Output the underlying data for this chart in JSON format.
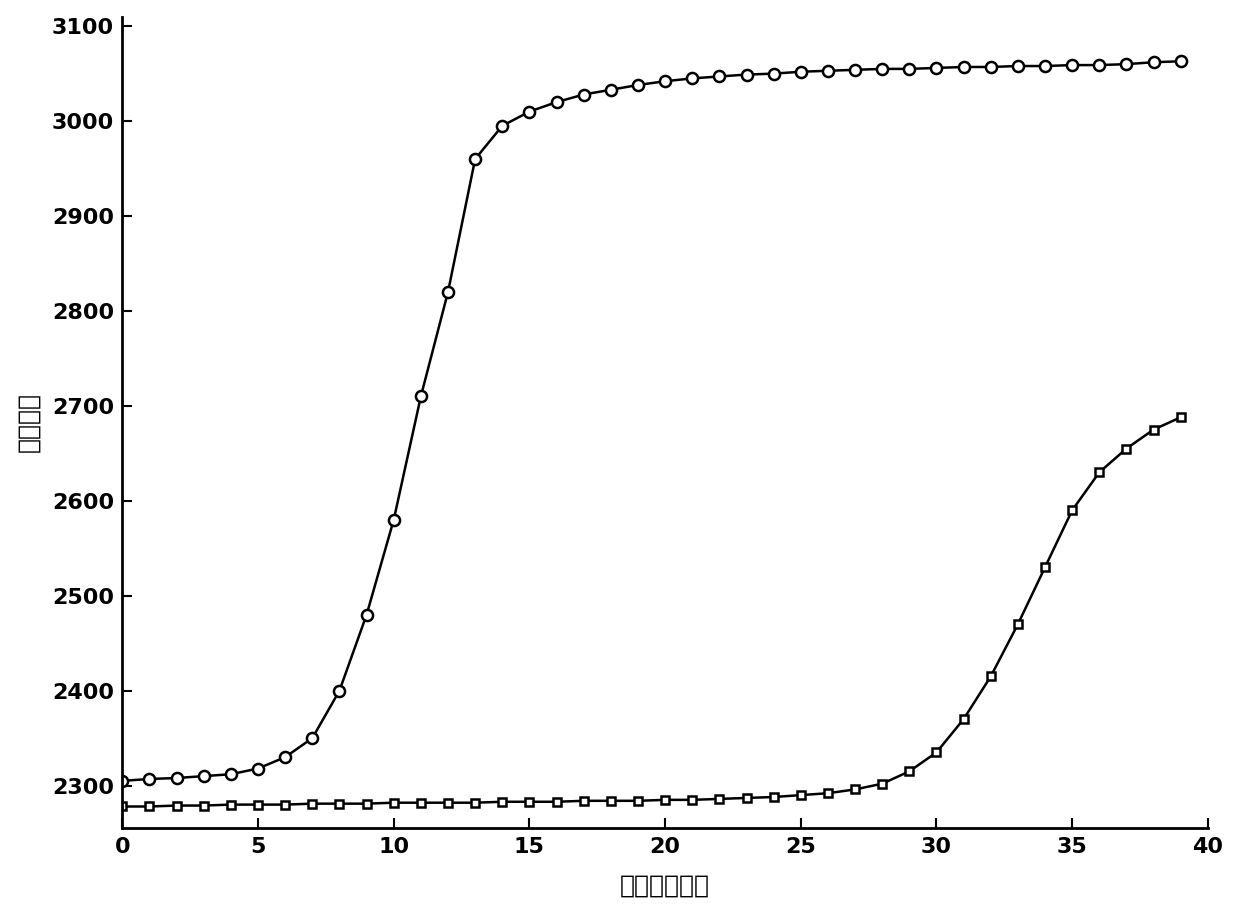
{
  "title": "",
  "xlabel": "时间（分钟）",
  "ylabel": "荧光强度",
  "xlim": [
    0,
    40
  ],
  "ylim": [
    2255,
    3110
  ],
  "yticks": [
    2300,
    2400,
    2500,
    2600,
    2700,
    2800,
    2900,
    3000,
    3100
  ],
  "xticks": [
    0,
    5,
    10,
    15,
    20,
    25,
    30,
    35,
    40
  ],
  "background_color": "#ffffff",
  "line_color": "#000000",
  "circle_series": {
    "x": [
      0,
      1,
      2,
      3,
      4,
      5,
      6,
      7,
      8,
      9,
      10,
      11,
      12,
      13,
      14,
      15,
      16,
      17,
      18,
      19,
      20,
      21,
      22,
      23,
      24,
      25,
      26,
      27,
      28,
      29,
      30,
      31,
      32,
      33,
      34,
      35,
      36,
      37,
      38,
      39
    ],
    "y": [
      2305,
      2307,
      2308,
      2310,
      2312,
      2318,
      2330,
      2350,
      2400,
      2480,
      2580,
      2710,
      2820,
      2960,
      2995,
      3010,
      3020,
      3028,
      3033,
      3038,
      3042,
      3045,
      3047,
      3049,
      3050,
      3052,
      3053,
      3054,
      3055,
      3055,
      3056,
      3057,
      3057,
      3058,
      3058,
      3059,
      3059,
      3060,
      3062,
      3063
    ]
  },
  "diamond_series": {
    "x": [
      0,
      1,
      2,
      3,
      4,
      5,
      6,
      7,
      8,
      9,
      10,
      11,
      12,
      13,
      14,
      15,
      16,
      17,
      18,
      19,
      20,
      21,
      22,
      23,
      24,
      25,
      26,
      27,
      28,
      29,
      30,
      31,
      32,
      33,
      34,
      35,
      36,
      37,
      38,
      39
    ],
    "y": [
      2278,
      2278,
      2279,
      2279,
      2280,
      2280,
      2280,
      2281,
      2281,
      2281,
      2282,
      2282,
      2282,
      2282,
      2283,
      2283,
      2283,
      2284,
      2284,
      2284,
      2285,
      2285,
      2286,
      2287,
      2288,
      2290,
      2292,
      2296,
      2302,
      2315,
      2335,
      2370,
      2415,
      2470,
      2530,
      2590,
      2630,
      2655,
      2675,
      2688
    ]
  },
  "marker_size_circle": 8,
  "marker_size_diamond": 9,
  "linewidth": 1.8,
  "tick_labelsize": 16,
  "axis_labelsize": 18
}
